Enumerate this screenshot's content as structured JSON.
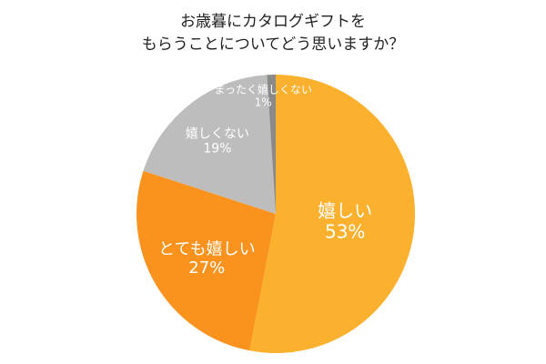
{
  "title": {
    "line1": "お歳暮にカタログギフトを",
    "line2": "もらうことについてどう思いますか？"
  },
  "colors": {
    "background": "#ffffff",
    "label_text": "#ffffff",
    "title_text": "#222222"
  },
  "chart_data": {
    "type": "pie",
    "title": "お歳暮にカタログギフトを もらうことについてどう思いますか？",
    "start": "12 o'clock",
    "direction": "clockwise",
    "slices": [
      {
        "label": "嬉しい",
        "value": 53,
        "display": "53%",
        "color": "#FBB12D"
      },
      {
        "label": "とても嬉しい",
        "value": 27,
        "display": "27%",
        "color": "#F9931E"
      },
      {
        "label": "嬉しくない",
        "value": 19,
        "display": "19%",
        "color": "#BDBDBD"
      },
      {
        "label": "まったく嬉しくない",
        "value": 1,
        "display": "1%",
        "color": "#8A8A8A"
      }
    ]
  }
}
